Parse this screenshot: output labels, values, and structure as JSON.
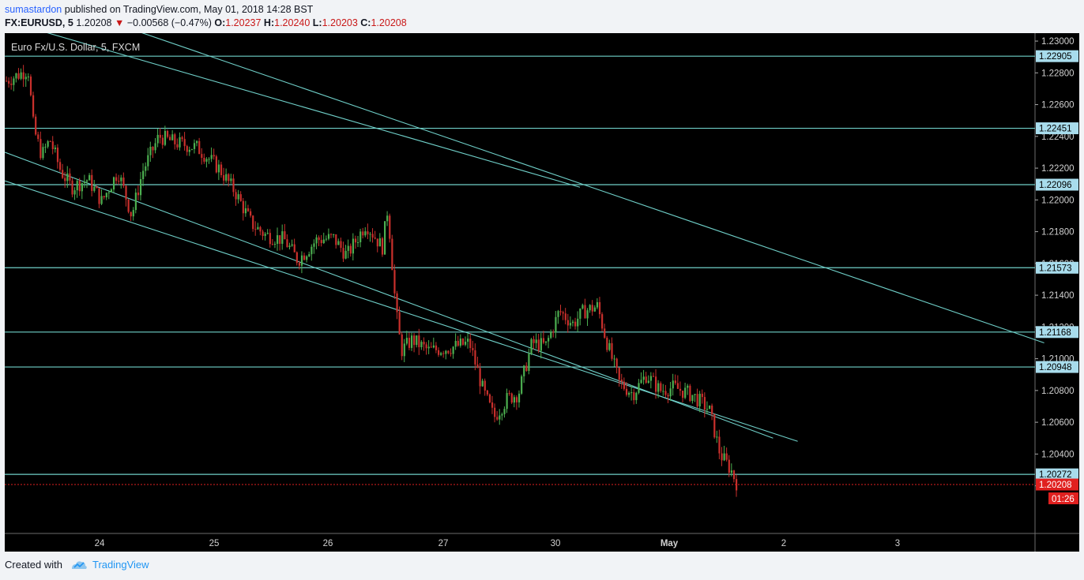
{
  "header": {
    "author": "sumastardon",
    "published_text": "published on TradingView.com, May 01, 2018 14:28 BST"
  },
  "info": {
    "symbol": "FX:EURUSD, 5",
    "last": "1.20208",
    "change_arrow": "▼",
    "change": "−0.00568 (−0.47%)",
    "o_label": "O:",
    "o": "1.20237",
    "h_label": "H:",
    "h": "1.20240",
    "l_label": "L:",
    "l": "1.20203",
    "c_label": "C:",
    "c": "1.20208"
  },
  "footer": {
    "created_with": "Created with",
    "brand": "TradingView",
    "logo_icon": "tradingview-cloud-icon"
  },
  "colors": {
    "background": "#000000",
    "up": "#4caf50",
    "down": "#c9302c",
    "lines": "#6fcfc8",
    "price_tag": "#e0201f",
    "hline_tag": "#a8dcec"
  },
  "chart_data": {
    "type": "candlestick",
    "title": "Euro Fx/U.S. Dollar, 5, FXCM",
    "ylim": [
      1.199,
      1.2305
    ],
    "y_ticks": [
      "1.23000",
      "1.22800",
      "1.22600",
      "1.22400",
      "1.22200",
      "1.22000",
      "1.21800",
      "1.21600",
      "1.21400",
      "1.21200",
      "1.21000",
      "1.20800",
      "1.20600",
      "1.20400",
      "1.20200"
    ],
    "x_ticks": [
      "24",
      "25",
      "26",
      "27",
      "30",
      "May",
      "2",
      "3"
    ],
    "bold_x_ticks": [
      "May"
    ],
    "horizontal_levels": [
      "1.22905",
      "1.22451",
      "1.22096",
      "1.21573",
      "1.21168",
      "1.20948",
      "1.20272"
    ],
    "current_price": "1.20208",
    "countdown": "01:26",
    "price_path": [
      {
        "x": 0.0,
        "y": 1.2275
      },
      {
        "x": 0.8,
        "y": 1.2282
      },
      {
        "x": 1.0,
        "y": 1.2245
      },
      {
        "x": 1.3,
        "y": 1.2228
      },
      {
        "x": 1.6,
        "y": 1.2238
      },
      {
        "x": 2.0,
        "y": 1.2218
      },
      {
        "x": 2.4,
        "y": 1.2208
      },
      {
        "x": 3.0,
        "y": 1.2213
      },
      {
        "x": 3.5,
        "y": 1.2199
      },
      {
        "x": 4.1,
        "y": 1.2218
      },
      {
        "x": 4.6,
        "y": 1.219
      },
      {
        "x": 5.0,
        "y": 1.2218
      },
      {
        "x": 5.6,
        "y": 1.224
      },
      {
        "x": 6.2,
        "y": 1.2236
      },
      {
        "x": 7.0,
        "y": 1.2233
      },
      {
        "x": 7.8,
        "y": 1.222
      },
      {
        "x": 8.4,
        "y": 1.2205
      },
      {
        "x": 9.0,
        "y": 1.2185
      },
      {
        "x": 9.5,
        "y": 1.2178
      },
      {
        "x": 10.2,
        "y": 1.2175
      },
      {
        "x": 10.7,
        "y": 1.2162
      },
      {
        "x": 11.4,
        "y": 1.2175
      },
      {
        "x": 12.0,
        "y": 1.2176
      },
      {
        "x": 12.5,
        "y": 1.2165
      },
      {
        "x": 13.2,
        "y": 1.2185
      },
      {
        "x": 13.8,
        "y": 1.217
      },
      {
        "x": 14.0,
        "y": 1.2195
      },
      {
        "x": 14.3,
        "y": 1.213
      },
      {
        "x": 14.5,
        "y": 1.2105
      },
      {
        "x": 14.9,
        "y": 1.2112
      },
      {
        "x": 15.5,
        "y": 1.2105
      },
      {
        "x": 16.3,
        "y": 1.2107
      },
      {
        "x": 17.0,
        "y": 1.211
      },
      {
        "x": 17.5,
        "y": 1.208
      },
      {
        "x": 17.9,
        "y": 1.2063
      },
      {
        "x": 18.4,
        "y": 1.2075
      },
      {
        "x": 18.8,
        "y": 1.2078
      },
      {
        "x": 19.3,
        "y": 1.211
      },
      {
        "x": 19.8,
        "y": 1.2108
      },
      {
        "x": 20.3,
        "y": 1.213
      },
      {
        "x": 20.8,
        "y": 1.2122
      },
      {
        "x": 21.2,
        "y": 1.213
      },
      {
        "x": 21.7,
        "y": 1.2133
      },
      {
        "x": 22.0,
        "y": 1.2113
      },
      {
        "x": 22.5,
        "y": 1.2085
      },
      {
        "x": 23.0,
        "y": 1.2078
      },
      {
        "x": 23.5,
        "y": 1.209
      },
      {
        "x": 24.0,
        "y": 1.208
      },
      {
        "x": 24.5,
        "y": 1.2082
      },
      {
        "x": 25.2,
        "y": 1.2077
      },
      {
        "x": 25.8,
        "y": 1.2068
      },
      {
        "x": 26.2,
        "y": 1.204
      },
      {
        "x": 26.6,
        "y": 1.203
      },
      {
        "x": 26.8,
        "y": 1.2022
      }
    ],
    "channel_lines": [
      {
        "x1": 0.4,
        "y1": 1.231,
        "x2": 14.0,
        "y2": 1.2208
      },
      {
        "x1": 2.8,
        "y1": 1.231,
        "x2": 25.3,
        "y2": 1.211
      },
      {
        "x1": 0.0,
        "y1": 1.223,
        "x2": 18.7,
        "y2": 1.205
      },
      {
        "x1": 0.0,
        "y1": 1.2212,
        "x2": 19.3,
        "y2": 1.2048
      }
    ]
  }
}
